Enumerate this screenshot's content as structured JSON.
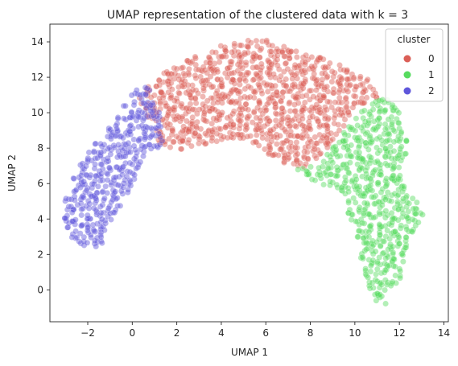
{
  "chart_data": {
    "type": "scatter",
    "title": "UMAP representation of the clustered data with k = 3",
    "xlabel": "UMAP 1",
    "ylabel": "UMAP 2",
    "xlim": [
      -3.7,
      14.2
    ],
    "ylim": [
      -1.8,
      15.0
    ],
    "xticks": [
      "−2",
      "0",
      "2",
      "4",
      "6",
      "8",
      "10",
      "12",
      "14"
    ],
    "xtick_values": [
      -2,
      0,
      2,
      4,
      6,
      8,
      10,
      12,
      14
    ],
    "yticks": [
      "0",
      "2",
      "4",
      "6",
      "8",
      "10",
      "12",
      "14"
    ],
    "ytick_values": [
      0,
      2,
      4,
      6,
      8,
      10,
      12,
      14
    ],
    "grid": false,
    "legend": {
      "title": "cluster",
      "placement": "top-right",
      "entries": [
        {
          "label": "0",
          "color": "#db5f57"
        },
        {
          "label": "1",
          "color": "#57db5f"
        },
        {
          "label": "2",
          "color": "#5f57db"
        }
      ]
    },
    "series": [
      {
        "name": "0",
        "color": "#db5f57",
        "approx_region": [
          [
            0.2,
            11.0
          ],
          [
            1.5,
            12.3
          ],
          [
            3.0,
            13.3
          ],
          [
            4.5,
            14.1
          ],
          [
            6.0,
            14.1
          ],
          [
            7.5,
            13.5
          ],
          [
            9.0,
            12.9
          ],
          [
            10.5,
            12.0
          ],
          [
            11.3,
            11.0
          ],
          [
            10.0,
            10.2
          ],
          [
            9.0,
            8.2
          ],
          [
            7.8,
            6.9
          ],
          [
            6.8,
            7.1
          ],
          [
            5.2,
            8.4
          ],
          [
            3.5,
            8.3
          ],
          [
            2.0,
            7.8
          ],
          [
            1.2,
            8.3
          ],
          [
            0.8,
            9.5
          ]
        ]
      },
      {
        "name": "1",
        "color": "#57db5f",
        "approx_region": [
          [
            11.3,
            11.0
          ],
          [
            12.2,
            9.8
          ],
          [
            12.4,
            8.0
          ],
          [
            12.0,
            6.8
          ],
          [
            12.6,
            5.3
          ],
          [
            13.2,
            4.2
          ],
          [
            12.5,
            3.0
          ],
          [
            12.2,
            1.0
          ],
          [
            11.7,
            0.0
          ],
          [
            11.3,
            -1.0
          ],
          [
            10.8,
            -0.6
          ],
          [
            10.2,
            2.0
          ],
          [
            9.8,
            3.7
          ],
          [
            9.5,
            5.5
          ],
          [
            8.2,
            6.1
          ],
          [
            7.4,
            6.8
          ],
          [
            8.5,
            7.2
          ],
          [
            9.8,
            9.5
          ],
          [
            10.8,
            10.6
          ]
        ]
      },
      {
        "name": "2",
        "color": "#5f57db",
        "approx_region": [
          [
            -0.2,
            10.9
          ],
          [
            0.6,
            11.7
          ],
          [
            1.2,
            10.2
          ],
          [
            1.4,
            8.1
          ],
          [
            0.6,
            7.8
          ],
          [
            0.2,
            6.2
          ],
          [
            -0.7,
            4.4
          ],
          [
            -1.3,
            2.6
          ],
          [
            -1.8,
            2.2
          ],
          [
            -2.6,
            2.7
          ],
          [
            -3.1,
            3.9
          ],
          [
            -3.0,
            5.3
          ],
          [
            -2.5,
            6.8
          ],
          [
            -1.7,
            8.3
          ],
          [
            -0.8,
            9.5
          ]
        ]
      }
    ]
  }
}
